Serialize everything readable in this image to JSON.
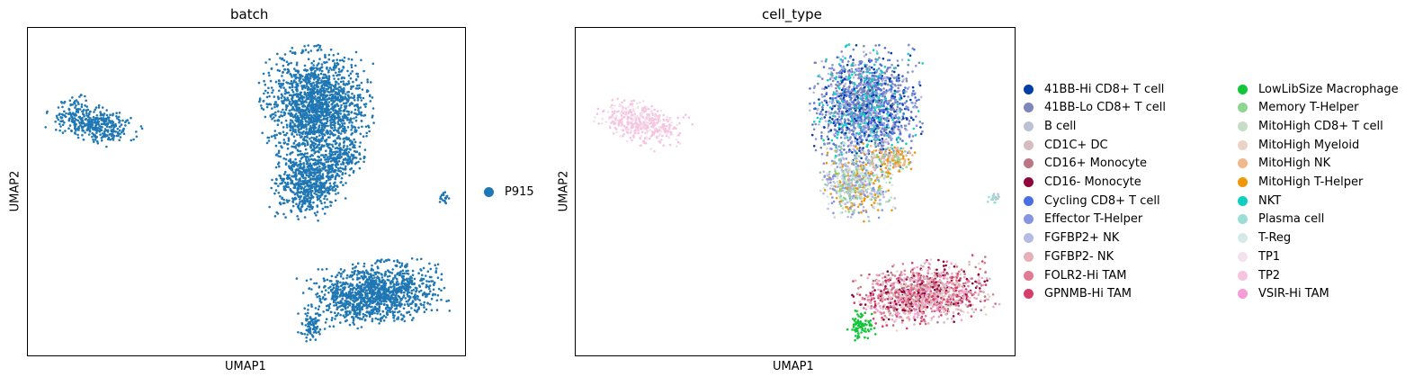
{
  "chart_data": [
    {
      "type": "scatter",
      "title": "batch",
      "xlabel": "UMAP1",
      "ylabel": "UMAP2",
      "legend_title": "",
      "legend_position": "right",
      "series": [
        {
          "name": "P915",
          "color": "#1f77b4"
        }
      ],
      "clusters": [
        {
          "name": "upper-blob",
          "series": "P915",
          "cx": 0.0,
          "cy": 3.0
        },
        {
          "name": "left-arm",
          "series": "P915",
          "cx": -5.5,
          "cy": 2.0
        },
        {
          "name": "bottom-blob",
          "series": "P915",
          "cx": 1.5,
          "cy": -3.0
        },
        {
          "name": "small-right",
          "series": "P915",
          "cx": 4.7,
          "cy": 0.0
        }
      ]
    },
    {
      "type": "scatter",
      "title": "cell_type",
      "xlabel": "UMAP1",
      "ylabel": "UMAP2",
      "legend_position": "right",
      "series": [
        {
          "name": "41BB-Hi CD8+ T cell",
          "color": "#023fa5"
        },
        {
          "name": "41BB-Lo CD8+ T cell",
          "color": "#7d87b9"
        },
        {
          "name": "B cell",
          "color": "#bec1d4"
        },
        {
          "name": "CD1C+ DC",
          "color": "#d6bcc0"
        },
        {
          "name": "CD16+ Monocyte",
          "color": "#bb7784"
        },
        {
          "name": "CD16- Monocyte",
          "color": "#8e063b"
        },
        {
          "name": "Cycling CD8+ T cell",
          "color": "#4a6fe3"
        },
        {
          "name": "Effector T-Helper",
          "color": "#8595e1"
        },
        {
          "name": "FGFBP2+ NK",
          "color": "#b5bbe3"
        },
        {
          "name": "FGFBP2- NK",
          "color": "#e6afb9"
        },
        {
          "name": "FOLR2-Hi TAM",
          "color": "#e07b91"
        },
        {
          "name": "GPNMB-Hi TAM",
          "color": "#d33f6a"
        },
        {
          "name": "LowLibSize Macrophage",
          "color": "#11c638"
        },
        {
          "name": "Memory T-Helper",
          "color": "#8dd593"
        },
        {
          "name": "MitoHigh CD8+ T cell",
          "color": "#c6dec7"
        },
        {
          "name": "MitoHigh Myeloid",
          "color": "#ead3c6"
        },
        {
          "name": "MitoHigh NK",
          "color": "#f0b98d"
        },
        {
          "name": "MitoHigh T-Helper",
          "color": "#ef9708"
        },
        {
          "name": "NKT",
          "color": "#0fcfc0"
        },
        {
          "name": "Plasma cell",
          "color": "#9cded6"
        },
        {
          "name": "T-Reg",
          "color": "#d5eae7"
        },
        {
          "name": "TP1",
          "color": "#f3e1eb"
        },
        {
          "name": "TP2",
          "color": "#f6c4e1"
        },
        {
          "name": "VSIR-Hi TAM",
          "color": "#f79cd4"
        }
      ]
    }
  ]
}
